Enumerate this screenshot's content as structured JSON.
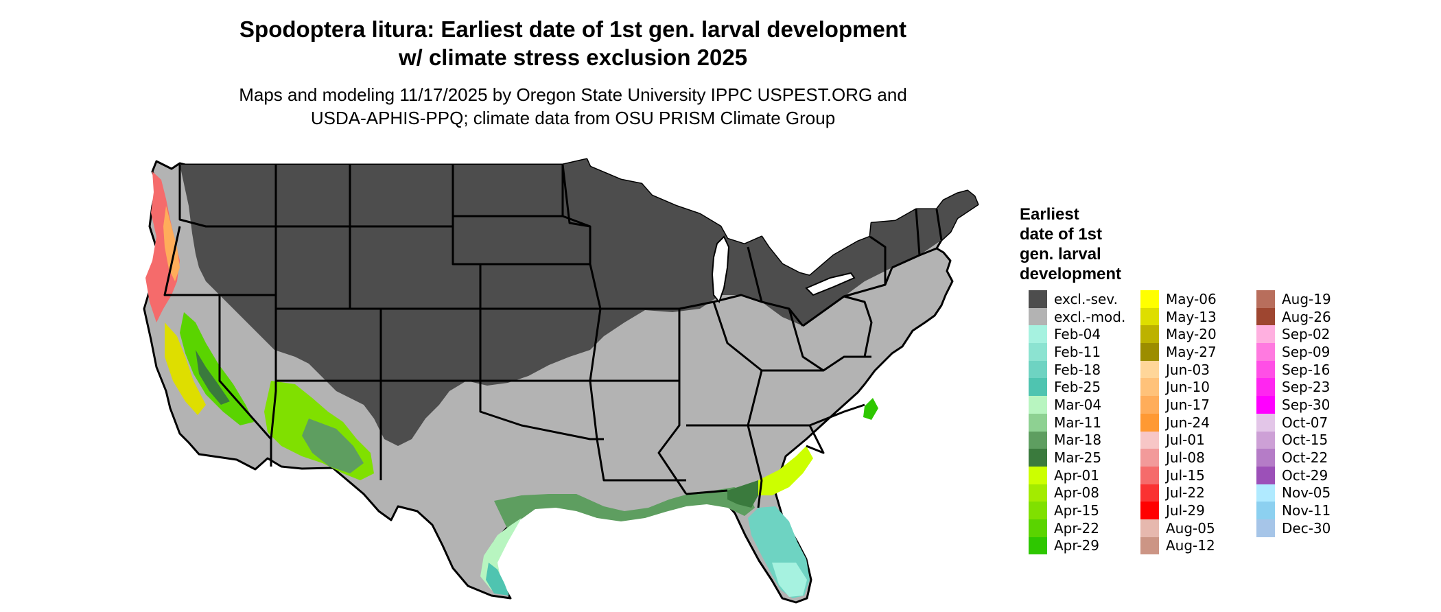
{
  "header": {
    "title_line1": "Spodoptera litura: Earliest date of 1st gen. larval development",
    "title_line2": "w/ climate stress exclusion 2025",
    "subtitle_line1": "Maps and modeling 11/17/2025 by Oregon State University IPPC USPEST.ORG and",
    "subtitle_line2": "USDA-APHIS-PPQ; climate data from OSU PRISM Climate Group"
  },
  "legend": {
    "title_lines": [
      "Earliest",
      "date of 1st",
      "gen. larval",
      "development"
    ],
    "columns": [
      [
        {
          "label": "excl.-sev.",
          "color": "#4d4d4d"
        },
        {
          "label": "excl.-mod.",
          "color": "#b3b3b3"
        },
        {
          "label": "Feb-04",
          "color": "#a6f2e0"
        },
        {
          "label": "Feb-11",
          "color": "#8ce3d1"
        },
        {
          "label": "Feb-18",
          "color": "#6ed3c2"
        },
        {
          "label": "Feb-25",
          "color": "#4fc4b0"
        },
        {
          "label": "Mar-04",
          "color": "#b8f5c0"
        },
        {
          "label": "Mar-11",
          "color": "#8ed192"
        },
        {
          "label": "Mar-18",
          "color": "#5e9e60"
        },
        {
          "label": "Mar-25",
          "color": "#3a7a3d"
        },
        {
          "label": "Apr-01",
          "color": "#ccff00"
        },
        {
          "label": "Apr-08",
          "color": "#a3eb00"
        },
        {
          "label": "Apr-15",
          "color": "#80e000"
        },
        {
          "label": "Apr-22",
          "color": "#5ad400"
        },
        {
          "label": "Apr-29",
          "color": "#2ec700"
        }
      ],
      [
        {
          "label": "May-06",
          "color": "#ffff00"
        },
        {
          "label": "May-13",
          "color": "#dede00"
        },
        {
          "label": "May-20",
          "color": "#bdb200"
        },
        {
          "label": "May-27",
          "color": "#9c8d00"
        },
        {
          "label": "Jun-03",
          "color": "#ffd699"
        },
        {
          "label": "Jun-10",
          "color": "#ffc27a"
        },
        {
          "label": "Jun-17",
          "color": "#ffad5a"
        },
        {
          "label": "Jun-24",
          "color": "#ff9933"
        },
        {
          "label": "Jul-01",
          "color": "#f7c6c6"
        },
        {
          "label": "Jul-08",
          "color": "#f29a9a"
        },
        {
          "label": "Jul-15",
          "color": "#f56b6b"
        },
        {
          "label": "Jul-22",
          "color": "#fa3232"
        },
        {
          "label": "Jul-29",
          "color": "#ff0000"
        },
        {
          "label": "Aug-05",
          "color": "#e6b8ae"
        },
        {
          "label": "Aug-12",
          "color": "#cc9585"
        }
      ],
      [
        {
          "label": "Aug-19",
          "color": "#b86e5c"
        },
        {
          "label": "Aug-26",
          "color": "#9e4630"
        },
        {
          "label": "Sep-02",
          "color": "#ffb0e0"
        },
        {
          "label": "Sep-09",
          "color": "#ff7ae0"
        },
        {
          "label": "Sep-16",
          "color": "#ff4fe6"
        },
        {
          "label": "Sep-23",
          "color": "#ff26f0"
        },
        {
          "label": "Sep-30",
          "color": "#ff00ff"
        },
        {
          "label": "Oct-07",
          "color": "#e3c6e8"
        },
        {
          "label": "Oct-15",
          "color": "#cda0d6"
        },
        {
          "label": "Oct-22",
          "color": "#b57cc7"
        },
        {
          "label": "Oct-29",
          "color": "#9c50b8"
        },
        {
          "label": "Nov-05",
          "color": "#b0eaff"
        },
        {
          "label": "Nov-11",
          "color": "#8cd0f0"
        },
        {
          "label": "Dec-30",
          "color": "#a6c5e8"
        }
      ]
    ]
  }
}
